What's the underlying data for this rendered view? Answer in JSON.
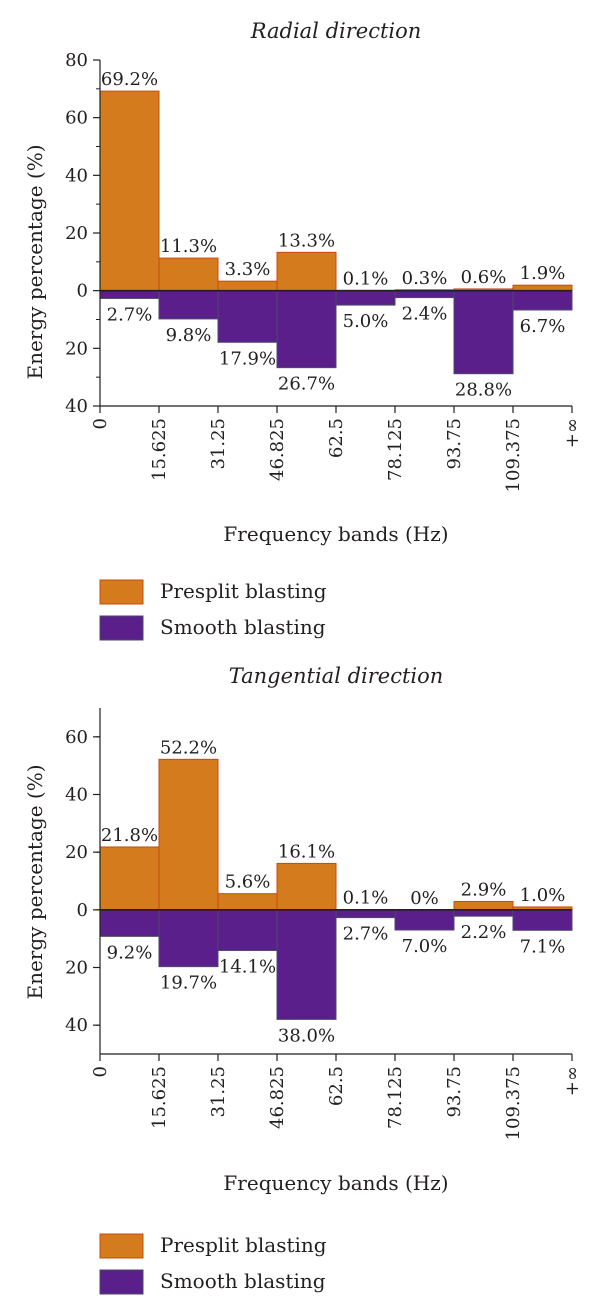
{
  "colors": {
    "presplit": "#d47b1d",
    "presplit_edge": "#c74a10",
    "smooth": "#5a1f8a",
    "smooth_edge": "#4a4a6a",
    "axis": "#231f20"
  },
  "chart_data": [
    {
      "type": "bar",
      "title": "Radial direction",
      "xlabel": "Frequency bands (Hz)",
      "ylabel": "Energy percentage (%)",
      "x_edges": [
        "0",
        "15.625",
        "31.25",
        "46.825",
        "62.5",
        "78.125",
        "93.75",
        "109.375",
        "+∞"
      ],
      "ylim": [
        -40,
        80
      ],
      "yticks": [
        {
          "v": 80,
          "label": "80"
        },
        {
          "v": 60,
          "label": "60"
        },
        {
          "v": 40,
          "label": "40"
        },
        {
          "v": 20,
          "label": "20"
        },
        {
          "v": 0,
          "label": "0"
        },
        {
          "v": -20,
          "label": "20"
        },
        {
          "v": -40,
          "label": "40"
        }
      ],
      "legend": "bottom",
      "series": [
        {
          "name": "Presplit blasting",
          "direction": "up",
          "values": [
            69.2,
            11.3,
            3.3,
            13.3,
            0.1,
            0.3,
            0.6,
            1.9
          ],
          "labels": [
            "69.2%",
            "11.3%",
            "3.3%",
            "13.3%",
            "0.1%",
            "0.3%",
            "0.6%",
            "1.9%"
          ]
        },
        {
          "name": "Smooth blasting",
          "direction": "down",
          "values": [
            2.7,
            9.8,
            17.9,
            26.7,
            5.0,
            2.4,
            28.8,
            6.7
          ],
          "labels": [
            "2.7%",
            "9.8%",
            "17.9%",
            "26.7%",
            "5.0%",
            "2.4%",
            "28.8%",
            "6.7%"
          ]
        }
      ]
    },
    {
      "type": "bar",
      "title": "Tangential direction",
      "xlabel": "Frequency bands (Hz)",
      "ylabel": "Energy percentage (%)",
      "x_edges": [
        "0",
        "15.625",
        "31.25",
        "46.825",
        "62.5",
        "78.125",
        "93.75",
        "109.375",
        "+∞"
      ],
      "ylim": [
        -50,
        70
      ],
      "yticks": [
        {
          "v": 60,
          "label": "60"
        },
        {
          "v": 40,
          "label": "40"
        },
        {
          "v": 20,
          "label": "20"
        },
        {
          "v": 0,
          "label": "0"
        },
        {
          "v": -20,
          "label": "20"
        },
        {
          "v": -40,
          "label": "40"
        }
      ],
      "legend": "bottom",
      "series": [
        {
          "name": "Presplit blasting",
          "direction": "up",
          "values": [
            21.8,
            52.2,
            5.6,
            16.1,
            0.1,
            0,
            2.9,
            1.0
          ],
          "labels": [
            "21.8%",
            "52.2%",
            "5.6%",
            "16.1%",
            "0.1%",
            "0%",
            "2.9%",
            "1.0%"
          ]
        },
        {
          "name": "Smooth blasting",
          "direction": "down",
          "values": [
            9.2,
            19.7,
            14.1,
            38.0,
            2.7,
            7.0,
            2.2,
            7.1
          ],
          "labels": [
            "9.2%",
            "19.7%",
            "14.1%",
            "38.0%",
            "2.7%",
            "7.0%",
            "2.2%",
            "7.1%"
          ]
        }
      ]
    }
  ]
}
